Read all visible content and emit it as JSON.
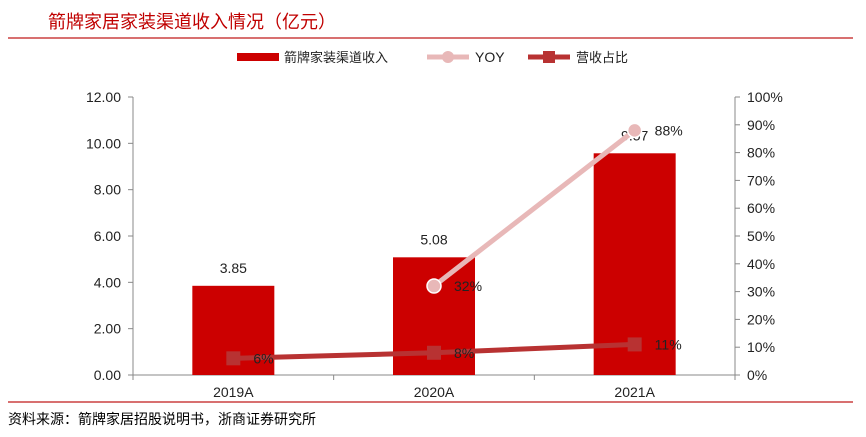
{
  "title": "箭牌家居家装渠道收入情况（亿元）",
  "source": "资料来源：箭牌家居招股说明书，浙商证券研究所",
  "colors": {
    "bar": "#cc0000",
    "yoy": "#e8b8b8",
    "share": "#b83232",
    "rule": "#d87070"
  },
  "chart_data": {
    "type": "bar",
    "title": "箭牌家居家装渠道收入情况（亿元）",
    "categories": [
      "2019A",
      "2020A",
      "2021A"
    ],
    "series": [
      {
        "name": "箭牌家装渠道收入",
        "type": "bar",
        "axis": "left",
        "values": [
          3.85,
          5.08,
          9.57
        ],
        "labels": [
          "3.85",
          "5.08",
          "9.57"
        ]
      },
      {
        "name": "YOY",
        "type": "line",
        "axis": "right",
        "values": [
          null,
          32,
          88
        ],
        "labels": [
          "",
          "32%",
          "88%"
        ]
      },
      {
        "name": "营收占比",
        "type": "line",
        "axis": "right",
        "values": [
          6,
          8,
          11
        ],
        "labels": [
          "6%",
          "8%",
          "11%"
        ]
      }
    ],
    "ylim": [
      0,
      12
    ],
    "y2lim": [
      0,
      100
    ],
    "yticks": [
      "0.00",
      "2.00",
      "4.00",
      "6.00",
      "8.00",
      "10.00",
      "12.00"
    ],
    "y2ticks": [
      "0%",
      "10%",
      "20%",
      "30%",
      "40%",
      "50%",
      "60%",
      "70%",
      "80%",
      "90%",
      "100%"
    ],
    "legend_position": "top-center",
    "grid": false
  }
}
